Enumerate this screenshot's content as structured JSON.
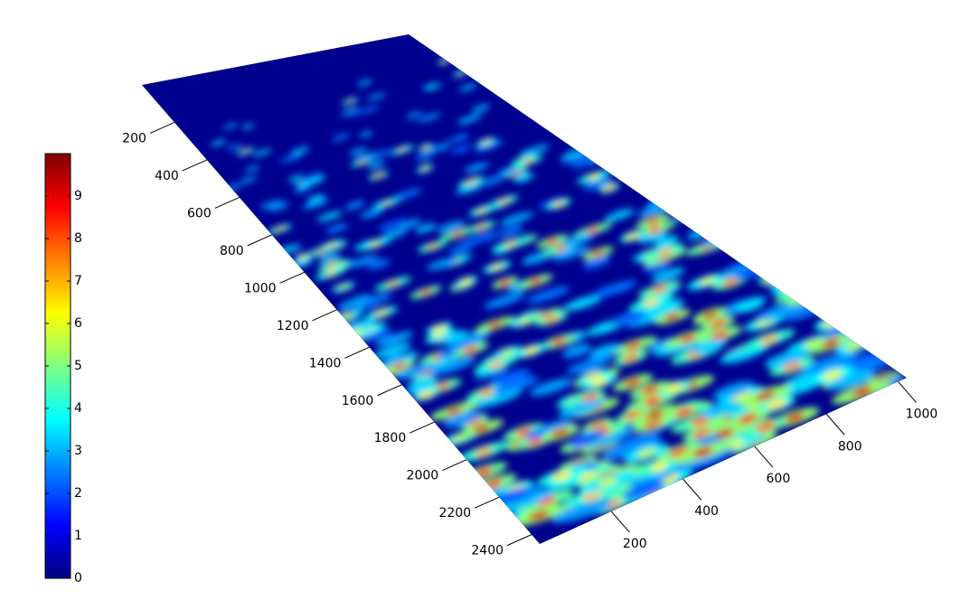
{
  "chart_data": {
    "type": "surface",
    "colormap": "jet",
    "axis1": {
      "lim": [
        0,
        2450
      ],
      "ticks": [
        200,
        400,
        600,
        800,
        1000,
        1200,
        1400,
        1600,
        1800,
        2000,
        2200,
        2400
      ]
    },
    "axis2": {
      "lim": [
        0,
        1024
      ],
      "ticks": [
        200,
        400,
        600,
        800,
        1000
      ]
    },
    "colorbar": {
      "lim": [
        0,
        10
      ],
      "ticks": [
        0,
        1,
        2,
        3,
        4,
        5,
        6,
        7,
        8,
        9
      ]
    }
  }
}
